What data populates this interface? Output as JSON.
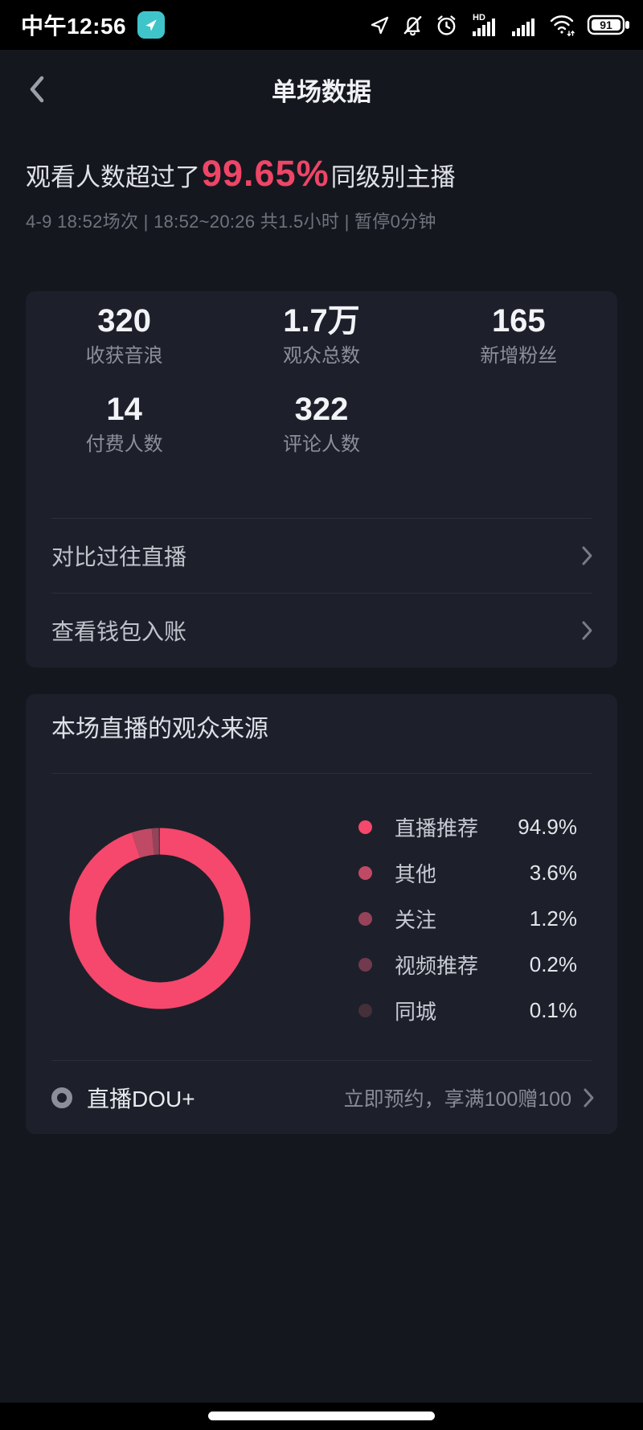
{
  "status_bar": {
    "time": "中午12:56",
    "battery_level": "91",
    "hd_label": "HD",
    "icons": [
      "location-badge",
      "location-arrow",
      "bell-muted",
      "alarm-clock",
      "signal-hd",
      "signal",
      "wifi",
      "battery"
    ]
  },
  "header": {
    "title": "单场数据"
  },
  "summary": {
    "headline_prefix": "观看人数超过了",
    "headline_percent": "99.65%",
    "headline_suffix": "同级别主播",
    "session_info": "4-9 18:52场次 | 18:52~20:26 共1.5小时 | 暂停0分钟"
  },
  "stats": {
    "items": [
      {
        "value": "320",
        "label": "收获音浪"
      },
      {
        "value": "1.7万",
        "label": "观众总数"
      },
      {
        "value": "165",
        "label": "新增粉丝"
      },
      {
        "value": "14",
        "label": "付费人数"
      },
      {
        "value": "322",
        "label": "评论人数"
      }
    ],
    "links": [
      {
        "label": "对比过往直播"
      },
      {
        "label": "查看钱包入账"
      }
    ]
  },
  "audience_card": {
    "title": "本场直播的观众来源",
    "dou_plus": {
      "label": "直播DOU+",
      "action": "立即预约，享满100赠100"
    }
  },
  "chart_data": {
    "type": "pie",
    "donut": true,
    "title": "本场直播的观众来源",
    "legend_position": "right",
    "start_angle_deg": 0,
    "direction": "clockwise",
    "series": [
      {
        "name": "直播推荐",
        "value": 94.9,
        "display": "94.9%",
        "color": "#f5486c"
      },
      {
        "name": "其他",
        "value": 3.6,
        "display": "3.6%",
        "color": "#c04a65"
      },
      {
        "name": "关注",
        "value": 1.2,
        "display": "1.2%",
        "color": "#96435a"
      },
      {
        "name": "视频推荐",
        "value": 0.2,
        "display": "0.2%",
        "color": "#713a4e"
      },
      {
        "name": "同城",
        "value": 0.1,
        "display": "0.1%",
        "color": "#453039"
      }
    ]
  },
  "colors": {
    "accent": "#ef4566",
    "page_bg": "#15171f",
    "card_bg": "#1d202a",
    "status_bar_bg": "#000000"
  }
}
